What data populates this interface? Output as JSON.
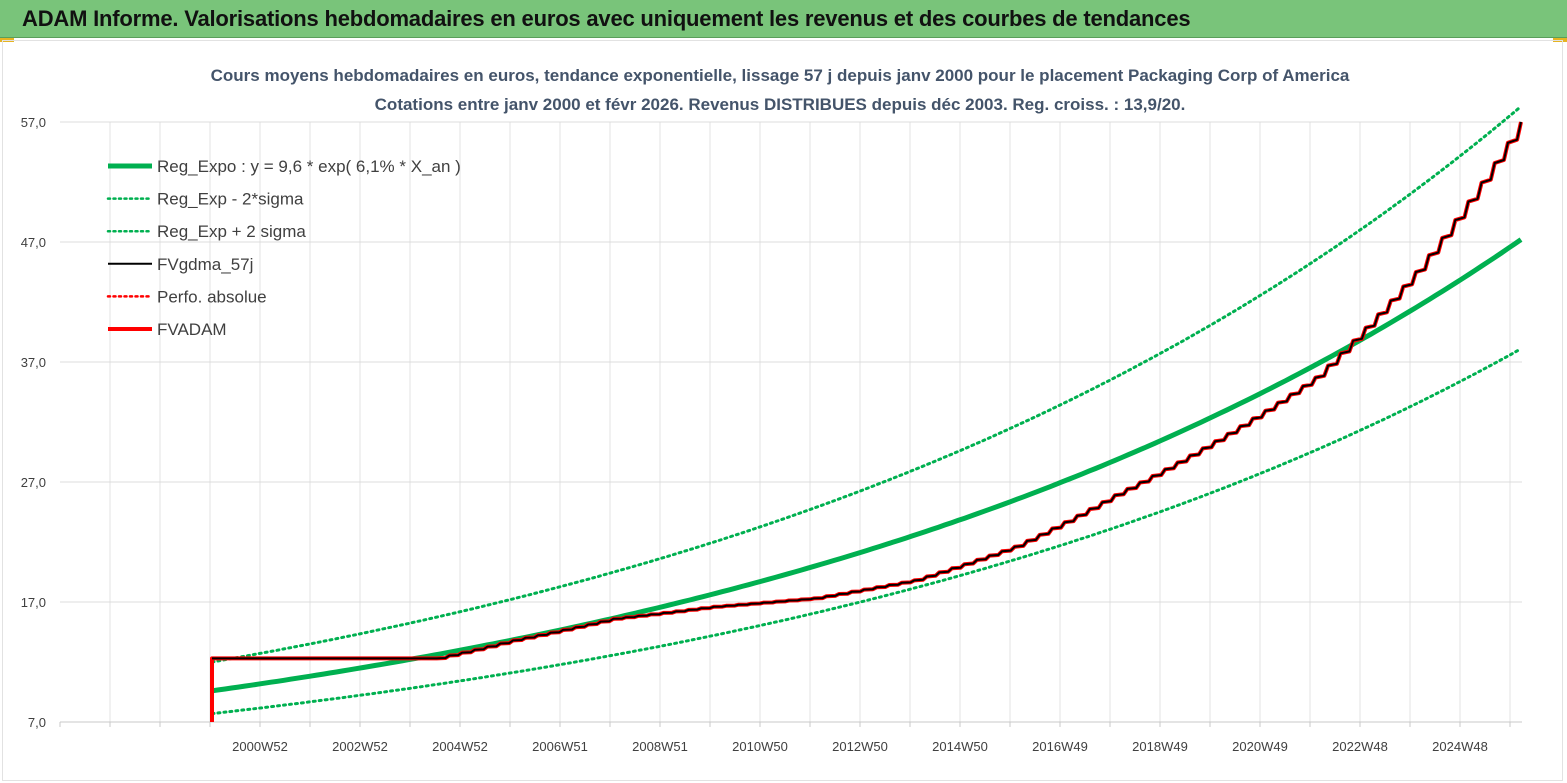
{
  "banner": {
    "title": "ADAM Informe. Valorisations hebdomadaires en euros avec uniquement les revenus et des courbes de tendances"
  },
  "chart_data": {
    "type": "line",
    "title_lines": [
      "Cours moyens hebdomadaires en euros, tendance exponentielle, lissage 57 j depuis janv 2000  pour le placement Packaging Corp of America",
      "Cotations entre janv 2000  et févr  2026. Revenus DISTRIBUES  depuis déc 2003. Reg.  croiss. : 13,9/20."
    ],
    "x_categories": [
      "2000W52",
      "2002W52",
      "2004W52",
      "2006W51",
      "2008W51",
      "2010W50",
      "2012W50",
      "2014W50",
      "2016W49",
      "2018W49",
      "2020W49",
      "2022W48",
      "2024W48"
    ],
    "y_ticks": [
      "7,0",
      "17,0",
      "27,0",
      "37,0",
      "47,0",
      "57,0"
    ],
    "ylim": [
      7,
      57
    ],
    "x_start": "2000W01",
    "x_end": "2026W06",
    "grid": true,
    "legend_position": "top-left",
    "series": [
      {
        "name": "Reg_Expo : y = 9,6 * exp( 6,1% *  X_an )",
        "color": "#00b050",
        "style": "solid",
        "width": 5,
        "x": [
          "2000W01",
          "2026W06"
        ],
        "y": [
          9.6,
          47.2
        ]
      },
      {
        "name": "Reg_Exp - 2*sigma",
        "color": "#00b050",
        "style": "dotted",
        "width": 3,
        "x": [
          "2000W01",
          "2026W06"
        ],
        "y": [
          7.7,
          38.1
        ]
      },
      {
        "name": "Reg_Exp + 2 sigma",
        "color": "#00b050",
        "style": "dotted",
        "width": 3,
        "x": [
          "2000W01",
          "2026W06"
        ],
        "y": [
          12.0,
          58.3
        ]
      },
      {
        "name": "FVgdma_57j",
        "color": "#000000",
        "style": "solid",
        "width": 2,
        "x": [
          "2000W01",
          "2004W26",
          "2006W01",
          "2008W01",
          "2010W01",
          "2012W01",
          "2014W01",
          "2016W01",
          "2018W01",
          "2020W01",
          "2022W01",
          "2024W01",
          "2026W06"
        ],
        "y": [
          12.3,
          12.3,
          13.8,
          15.6,
          16.6,
          17.3,
          18.8,
          21.6,
          25.9,
          30.4,
          35.7,
          44.5,
          57.0
        ]
      },
      {
        "name": "Perfo. absolue",
        "color": "#ff0000",
        "style": "dotted",
        "width": 2,
        "x": [],
        "y": []
      },
      {
        "name": "FVADAM",
        "color": "#ff0000",
        "style": "solid",
        "width": 4,
        "x": [
          "2000W01",
          "2000W01",
          "2004W26",
          "2006W01",
          "2008W01",
          "2010W01",
          "2012W01",
          "2014W01",
          "2016W01",
          "2018W01",
          "2020W01",
          "2022W01",
          "2024W01",
          "2026W06"
        ],
        "y": [
          7.0,
          12.3,
          12.3,
          13.8,
          15.6,
          16.6,
          17.3,
          18.8,
          21.6,
          25.9,
          30.4,
          35.7,
          44.5,
          57.0
        ]
      }
    ]
  }
}
